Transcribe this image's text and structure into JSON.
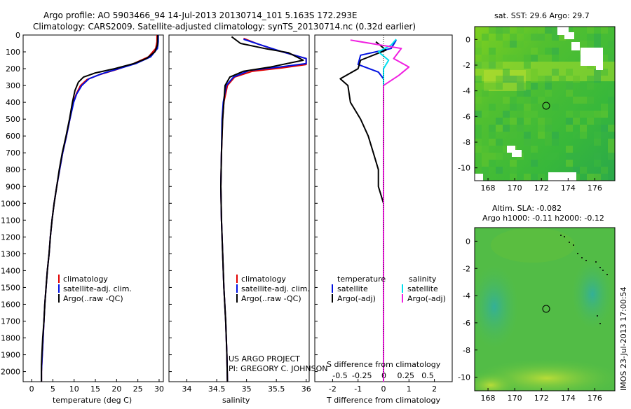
{
  "header": {
    "line1": "Argo profile: AO 5903466_94 14-Jul-2013 20130714_101 5.163S 172.293E",
    "line2": "Climatology: CARS2009. Satellite-adjusted climatology: synTS_20130714.nc (0.32d earlier)"
  },
  "colors": {
    "climatology": "#e00000",
    "satellite": "#0010e0",
    "argo": "#000000",
    "cyan": "#00e0f0",
    "magenta": "#f020e0"
  },
  "depth_axis": {
    "ticks": [
      "0",
      "100",
      "200",
      "300",
      "400",
      "500",
      "600",
      "700",
      "800",
      "900",
      "1000",
      "1100",
      "1200",
      "1300",
      "1400",
      "1500",
      "1600",
      "1700",
      "1800",
      "1900",
      "2000"
    ],
    "range": [
      0,
      2060
    ]
  },
  "chart_data": [
    {
      "type": "line",
      "panel": "temperature",
      "xlabel": "temperature (deg C)",
      "xticks": [
        "0",
        "5",
        "10",
        "15",
        "20",
        "25",
        "30"
      ],
      "xlim": [
        -2,
        31
      ],
      "legend": [
        "climatology",
        "satellite-adj. clim.",
        "Argo(..raw -QC)"
      ],
      "series": [
        {
          "name": "climatology",
          "points": [
            [
              29.5,
              0
            ],
            [
              29.5,
              40
            ],
            [
              29.2,
              80
            ],
            [
              27.5,
              130
            ],
            [
              24,
              170
            ],
            [
              20,
              205
            ],
            [
              16,
              235
            ],
            [
              13,
              265
            ],
            [
              11.5,
              300
            ],
            [
              10.5,
              350
            ],
            [
              9.8,
              400
            ],
            [
              9,
              500
            ],
            [
              8.2,
              600
            ],
            [
              7.3,
              700
            ],
            [
              6.6,
              800
            ],
            [
              5.9,
              900
            ],
            [
              5.3,
              1000
            ],
            [
              4.8,
              1100
            ],
            [
              4.4,
              1200
            ],
            [
              4.1,
              1300
            ],
            [
              3.7,
              1400
            ],
            [
              3.4,
              1500
            ],
            [
              3.1,
              1600
            ],
            [
              2.9,
              1700
            ],
            [
              2.7,
              1800
            ],
            [
              2.5,
              1900
            ],
            [
              2.3,
              2000
            ],
            [
              2.3,
              2060
            ]
          ]
        },
        {
          "name": "satellite-adj. clim.",
          "points": [
            [
              29.8,
              0
            ],
            [
              29.8,
              40
            ],
            [
              29.6,
              80
            ],
            [
              28,
              130
            ],
            [
              24.5,
              170
            ],
            [
              20.5,
              200
            ],
            [
              16.5,
              230
            ],
            [
              13.5,
              260
            ],
            [
              11.8,
              300
            ],
            [
              10.6,
              350
            ],
            [
              9.9,
              400
            ],
            [
              9,
              500
            ],
            [
              8.2,
              600
            ],
            [
              7.3,
              700
            ],
            [
              6.6,
              800
            ],
            [
              5.9,
              900
            ],
            [
              5.3,
              1000
            ],
            [
              4.8,
              1100
            ],
            [
              4.4,
              1200
            ],
            [
              4.1,
              1300
            ],
            [
              3.7,
              1400
            ],
            [
              3.4,
              1500
            ],
            [
              3.1,
              1600
            ],
            [
              2.9,
              1700
            ],
            [
              2.7,
              1800
            ],
            [
              2.5,
              1900
            ],
            [
              2.3,
              2000
            ],
            [
              2.3,
              2060
            ]
          ]
        },
        {
          "name": "Argo(..raw -QC)",
          "points": [
            [
              29.7,
              0
            ],
            [
              29.6,
              60
            ],
            [
              29,
              100
            ],
            [
              27,
              140
            ],
            [
              24,
              170
            ],
            [
              19.5,
              200
            ],
            [
              15,
              225
            ],
            [
              12.2,
              250
            ],
            [
              11,
              280
            ],
            [
              10.2,
              330
            ],
            [
              9.6,
              400
            ],
            [
              8.9,
              500
            ],
            [
              8.1,
              600
            ],
            [
              7.2,
              700
            ],
            [
              6.5,
              800
            ],
            [
              5.9,
              900
            ],
            [
              5.3,
              1000
            ],
            [
              4.8,
              1100
            ],
            [
              4.4,
              1200
            ],
            [
              4.1,
              1300
            ],
            [
              3.7,
              1400
            ],
            [
              3.4,
              1500
            ],
            [
              3.1,
              1600
            ],
            [
              2.9,
              1700
            ],
            [
              2.6,
              1800
            ],
            [
              2.4,
              1900
            ],
            [
              2.3,
              1960
            ],
            [
              2.3,
              2060
            ]
          ]
        }
      ]
    },
    {
      "type": "line",
      "panel": "salinity",
      "xlabel": "salinity",
      "xticks": [
        "34",
        "34.5",
        "35",
        "35.5",
        "36"
      ],
      "xlim": [
        33.7,
        36.05
      ],
      "legend": [
        "climatology",
        "satellite-adj. clim.",
        "Argo(..raw -QC)"
      ],
      "series": [
        {
          "name": "climatology",
          "points": [
            [
              34.95,
              20
            ],
            [
              35.2,
              55
            ],
            [
              35.55,
              95
            ],
            [
              36.0,
              140
            ],
            [
              36.0,
              175
            ],
            [
              35.6,
              195
            ],
            [
              35.1,
              215
            ],
            [
              34.8,
              250
            ],
            [
              34.68,
              300
            ],
            [
              34.62,
              400
            ],
            [
              34.6,
              500
            ],
            [
              34.58,
              700
            ],
            [
              34.57,
              900
            ],
            [
              34.58,
              1100
            ],
            [
              34.6,
              1300
            ],
            [
              34.62,
              1500
            ],
            [
              34.65,
              1700
            ],
            [
              34.67,
              1900
            ],
            [
              34.68,
              2060
            ]
          ]
        },
        {
          "name": "satellite-adj. clim.",
          "points": [
            [
              34.95,
              25
            ],
            [
              35.25,
              60
            ],
            [
              35.6,
              100
            ],
            [
              36.0,
              140
            ],
            [
              36.0,
              170
            ],
            [
              35.55,
              190
            ],
            [
              35.05,
              210
            ],
            [
              34.78,
              250
            ],
            [
              34.66,
              300
            ],
            [
              34.61,
              400
            ],
            [
              34.59,
              500
            ],
            [
              34.58,
              700
            ],
            [
              34.57,
              900
            ],
            [
              34.58,
              1100
            ],
            [
              34.6,
              1300
            ],
            [
              34.62,
              1500
            ],
            [
              34.65,
              1700
            ],
            [
              34.67,
              1900
            ],
            [
              34.68,
              2060
            ]
          ]
        },
        {
          "name": "Argo(..raw -QC)",
          "points": [
            [
              34.75,
              10
            ],
            [
              34.9,
              50
            ],
            [
              35.3,
              80
            ],
            [
              35.7,
              105
            ],
            [
              35.95,
              150
            ],
            [
              35.4,
              190
            ],
            [
              34.95,
              215
            ],
            [
              34.72,
              250
            ],
            [
              34.64,
              300
            ],
            [
              34.62,
              400
            ],
            [
              34.6,
              500
            ],
            [
              34.58,
              700
            ],
            [
              34.57,
              900
            ],
            [
              34.58,
              1100
            ],
            [
              34.6,
              1300
            ],
            [
              34.62,
              1500
            ],
            [
              34.65,
              1700
            ],
            [
              34.67,
              1900
            ],
            [
              34.68,
              2060
            ]
          ]
        }
      ]
    },
    {
      "type": "line",
      "panel": "difference",
      "xlabel": "T difference from climatology",
      "xlabel_top": "S difference from climatology",
      "xticks": [
        "-2",
        "-1",
        "0",
        "1",
        "2"
      ],
      "xticks_top": [
        "-0.5",
        "-0.25",
        "0",
        "0.25",
        "0.5"
      ],
      "xlim": [
        -2.7,
        2.7
      ],
      "legend_title_left": "temperature",
      "legend_title_right": "salinity",
      "legend": [
        "satellite",
        "Argo(-adj)",
        "satellite",
        "Argo(-adj)"
      ],
      "series": [
        {
          "name": "temperature satellite",
          "points": [
            [
              0.5,
              30
            ],
            [
              0.3,
              80
            ],
            [
              -0.9,
              120
            ],
            [
              -1.0,
              175
            ],
            [
              -0.2,
              220
            ],
            [
              0,
              260
            ],
            [
              0,
              400
            ],
            [
              0,
              2060
            ]
          ]
        },
        {
          "name": "temperature Argo(-adj)",
          "points": [
            [
              -0.3,
              40
            ],
            [
              0.1,
              90
            ],
            [
              -0.9,
              150
            ],
            [
              -1.0,
              200
            ],
            [
              -1.7,
              260
            ],
            [
              -1.4,
              300
            ],
            [
              -1.3,
              400
            ],
            [
              -0.9,
              500
            ],
            [
              -0.6,
              600
            ],
            [
              -0.4,
              700
            ],
            [
              -0.2,
              800
            ],
            [
              -0.2,
              900
            ],
            [
              0,
              1000
            ],
            [
              0,
              2060
            ]
          ]
        },
        {
          "name": "salinity satellite",
          "points": [
            [
              0.5,
              25
            ],
            [
              0.3,
              60
            ],
            [
              -0.2,
              100
            ],
            [
              0.2,
              150
            ],
            [
              0,
              200
            ],
            [
              0,
              2060
            ]
          ]
        },
        {
          "name": "salinity Argo(-adj)",
          "points": [
            [
              -1.3,
              30
            ],
            [
              0.7,
              80
            ],
            [
              0.4,
              140
            ],
            [
              1.0,
              190
            ],
            [
              0.6,
              240
            ],
            [
              0,
              300
            ],
            [
              0,
              2060
            ]
          ]
        }
      ]
    },
    {
      "type": "heatmap",
      "panel": "sst_map",
      "title": "sat. SST: 29.6 Argo: 29.7",
      "xticks": [
        "168",
        "170",
        "172",
        "174",
        "176"
      ],
      "yticks": [
        "0",
        "-2",
        "-4",
        "-6",
        "-8",
        "-10"
      ],
      "xlim": [
        167,
        177.5
      ],
      "ylim": [
        -11,
        1
      ],
      "marker": [
        172.293,
        -5.163
      ]
    },
    {
      "type": "heatmap",
      "panel": "sla_map",
      "title_line1": "Altim. SLA: -0.082",
      "title_line2": "Argo h1000: -0.11 h2000: -0.12",
      "xticks": [
        "168",
        "170",
        "172",
        "174",
        "176"
      ],
      "yticks": [
        "0",
        "-2",
        "-4",
        "-6",
        "-8",
        "-10"
      ],
      "xlim": [
        167,
        177.5
      ],
      "ylim": [
        -11,
        1
      ],
      "marker": [
        172.293,
        -5.163
      ]
    }
  ],
  "annotations": {
    "project_line1": "US ARGO PROJECT",
    "project_line2": "PI: GREGORY C. JOHNSON",
    "stamp": "IMOS 23-Jul-2013 17:00:54"
  }
}
